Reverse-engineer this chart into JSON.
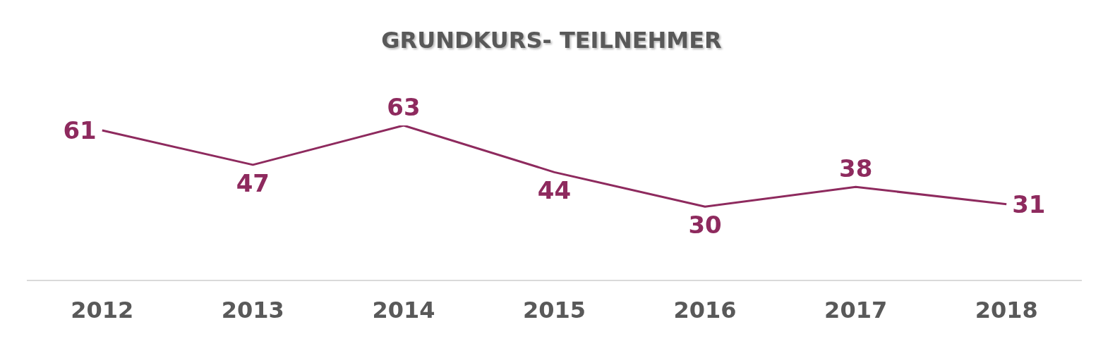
{
  "chart_data": {
    "type": "line",
    "title": "GRUNDKURS- TEILNEHMER",
    "categories": [
      "2012",
      "2013",
      "2014",
      "2015",
      "2016",
      "2017",
      "2018"
    ],
    "series": [
      {
        "color": "#8e2a5e",
        "values": [
          61,
          47,
          63,
          44,
          30,
          38,
          31
        ]
      }
    ],
    "data_labels": true
  }
}
